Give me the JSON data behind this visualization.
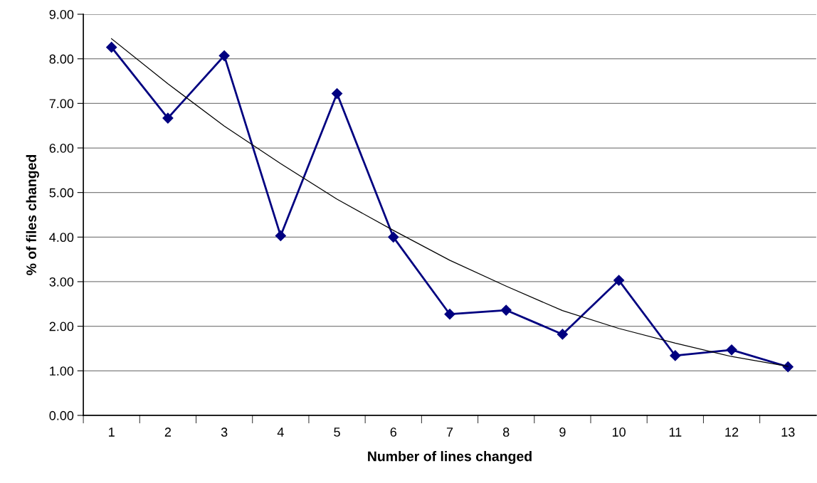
{
  "chart_data": {
    "type": "line",
    "xlabel": "Number of lines changed",
    "ylabel": "% of files changed",
    "categories": [
      "1",
      "2",
      "3",
      "4",
      "5",
      "6",
      "7",
      "8",
      "9",
      "10",
      "11",
      "12",
      "13"
    ],
    "series": [
      {
        "color": "#000080",
        "marker": "diamond",
        "values": [
          8.26,
          6.67,
          8.07,
          4.03,
          7.22,
          4.0,
          2.27,
          2.36,
          1.82,
          3.03,
          1.34,
          1.47,
          1.09
        ]
      },
      {
        "color": "#000000",
        "marker": "none",
        "values": [
          8.45,
          7.44,
          6.49,
          5.65,
          4.85,
          4.15,
          3.48,
          2.9,
          2.35,
          1.95,
          1.62,
          1.32,
          1.1
        ]
      }
    ],
    "ylim": [
      0,
      9
    ],
    "yticks": [
      {
        "value": 0,
        "label": "0.00"
      },
      {
        "value": 1,
        "label": "1.00"
      },
      {
        "value": 2,
        "label": "2.00"
      },
      {
        "value": 3,
        "label": "3.00"
      },
      {
        "value": 4,
        "label": "4.00"
      },
      {
        "value": 5,
        "label": "5.00"
      },
      {
        "value": 6,
        "label": "6.00"
      },
      {
        "value": 7,
        "label": "7.00"
      },
      {
        "value": 8,
        "label": "8.00"
      },
      {
        "value": 9,
        "label": "9.00"
      }
    ],
    "grid": "y"
  }
}
